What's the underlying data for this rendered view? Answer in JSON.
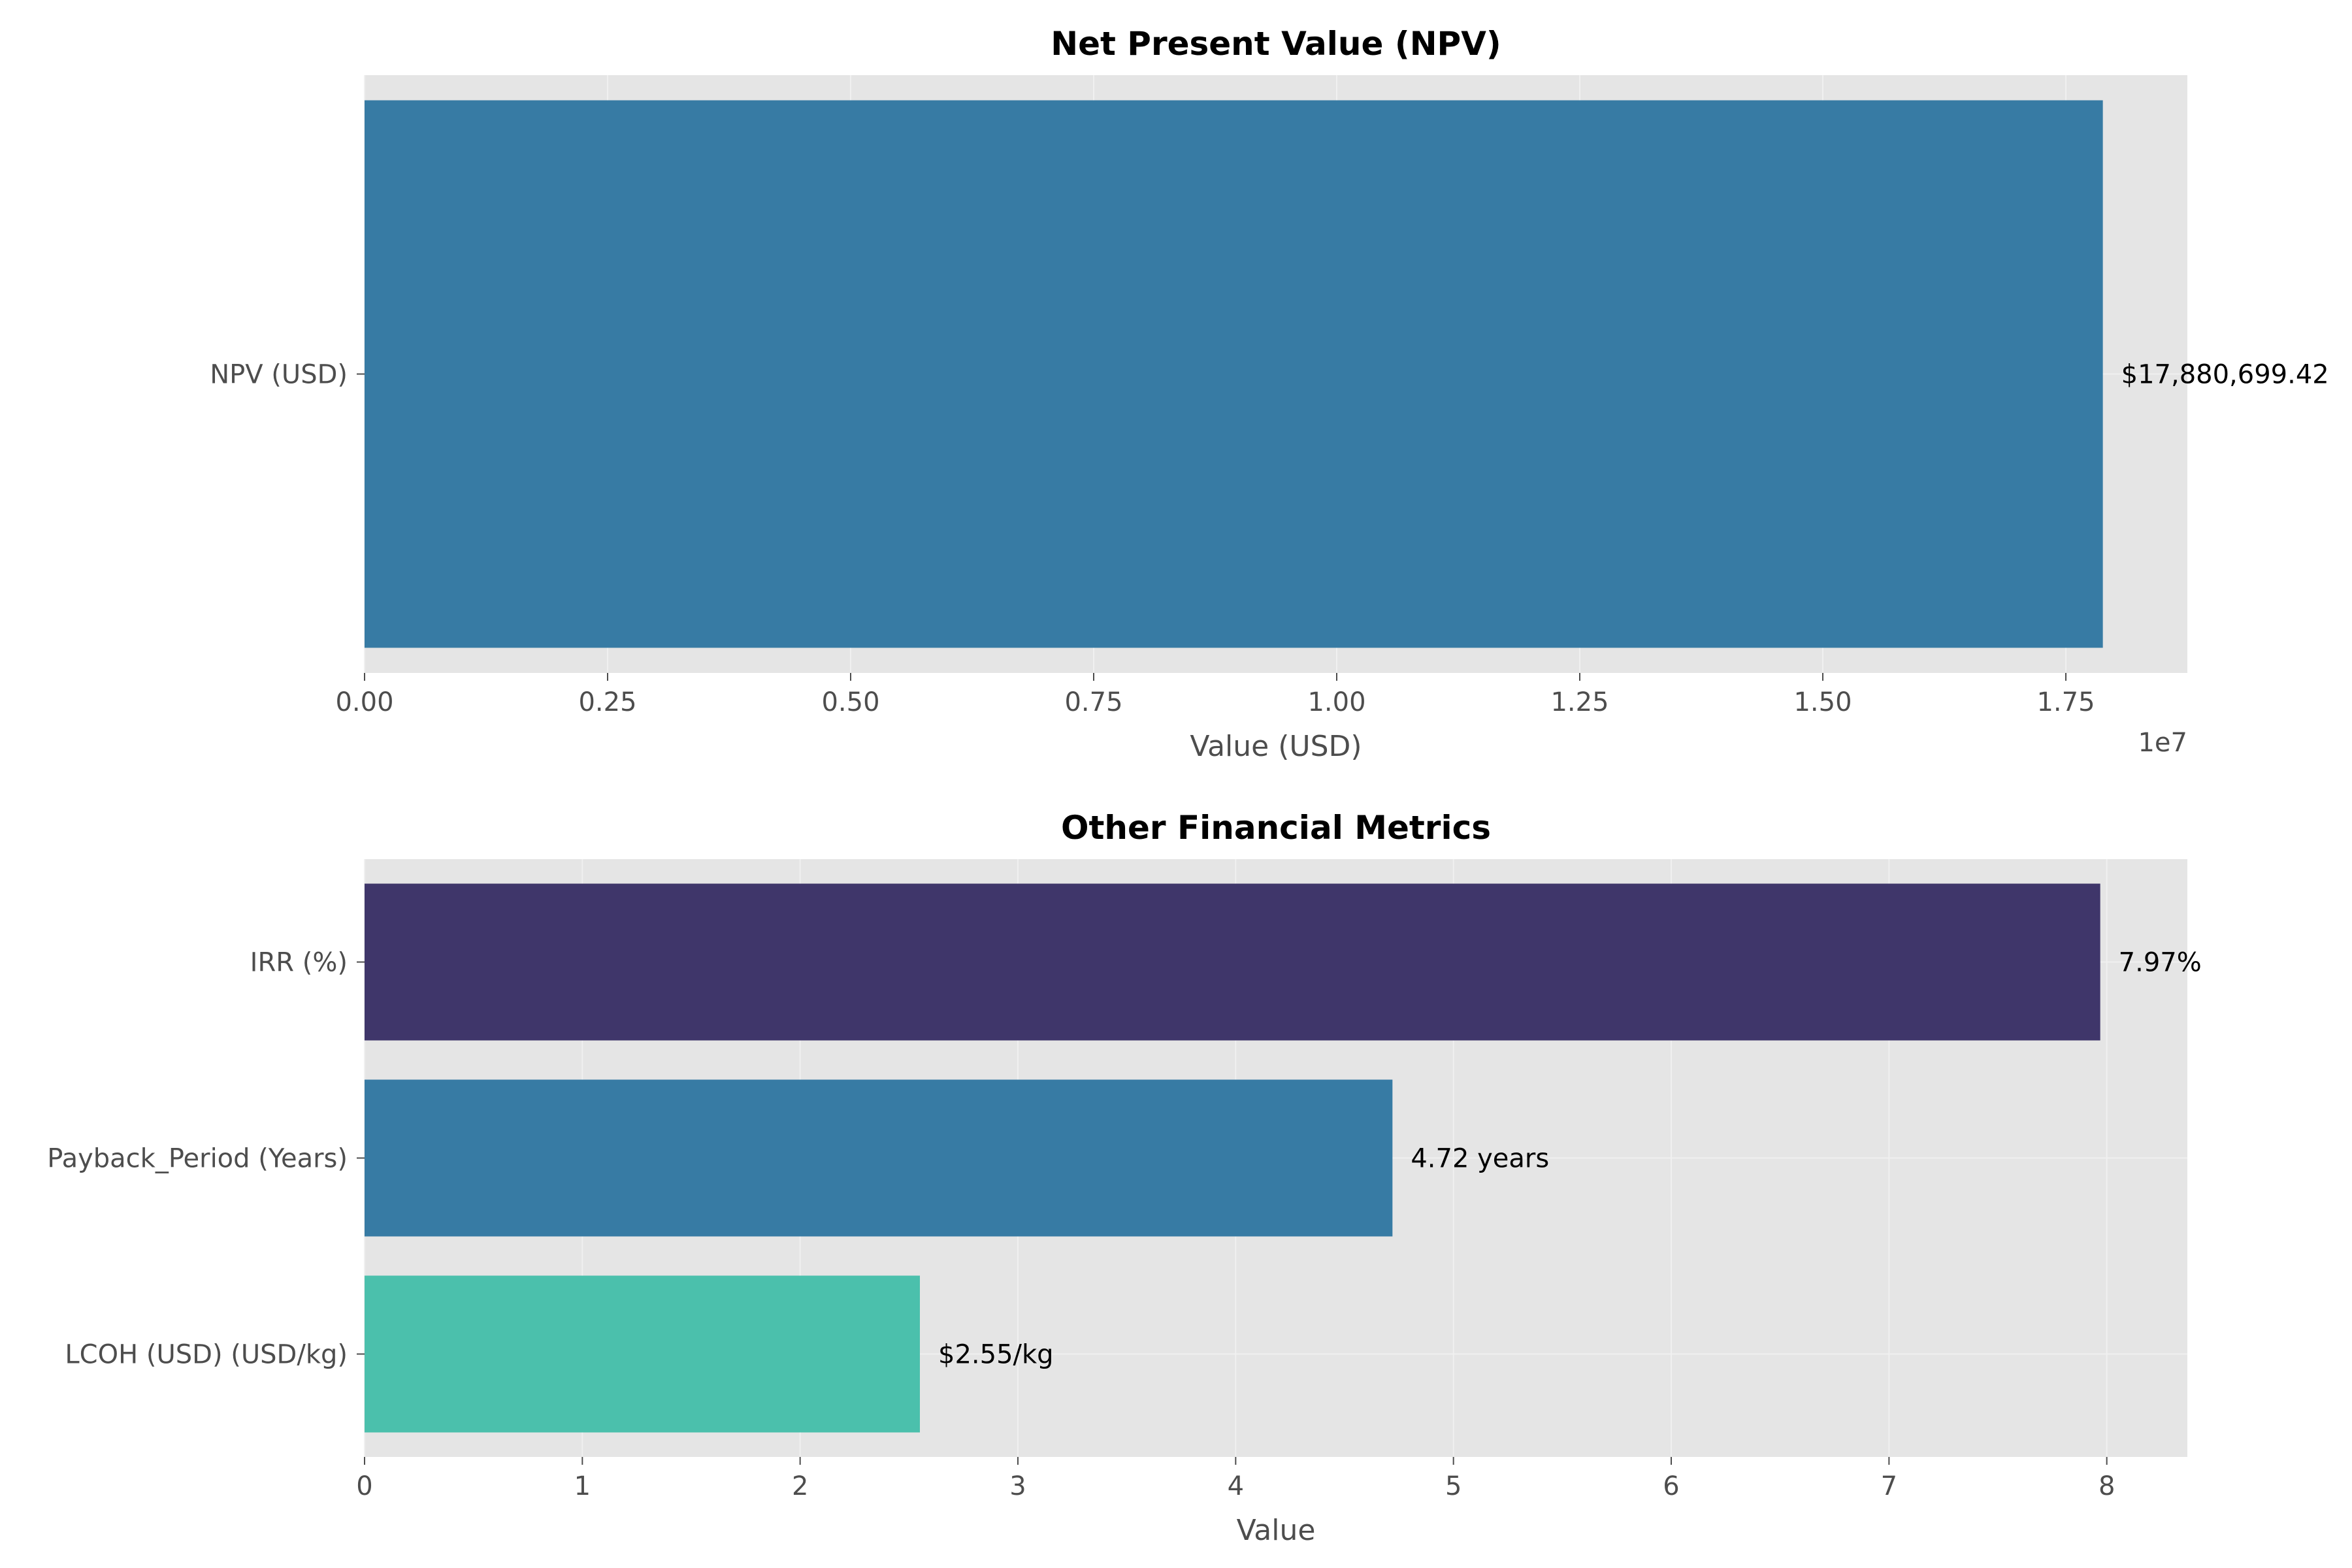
{
  "chart_data": [
    {
      "type": "bar",
      "orientation": "horizontal",
      "title": "Net Present Value (NPV)",
      "categories": [
        "NPV (USD)"
      ],
      "values": [
        17880699.42
      ],
      "value_labels": [
        "$17,880,699.42"
      ],
      "colors": [
        "#377ba4"
      ],
      "xlabel": "Value (USD)",
      "ylabel": "",
      "xlim": [
        0,
        18750000
      ],
      "xticks": [
        0,
        2500000,
        5000000,
        7500000,
        10000000,
        12500000,
        15000000,
        17500000
      ],
      "xtick_labels": [
        "0.00",
        "0.25",
        "0.50",
        "0.75",
        "1.00",
        "1.25",
        "1.50",
        "1.75"
      ],
      "offset_label": "1e7",
      "grid": true
    },
    {
      "type": "bar",
      "orientation": "horizontal",
      "title": "Other Financial Metrics",
      "categories": [
        "LCOH (USD) (USD/kg)",
        "Payback_Period (Years)",
        "IRR (%)"
      ],
      "values": [
        2.55,
        4.72,
        7.97
      ],
      "value_labels": [
        "$2.55/kg",
        "4.72 years",
        "7.97%"
      ],
      "colors": [
        "#4bc0ac",
        "#377ba4",
        "#3f366a"
      ],
      "xlabel": "Value",
      "ylabel": "",
      "xlim": [
        0,
        8.37
      ],
      "xticks": [
        0,
        1,
        2,
        3,
        4,
        5,
        6,
        7,
        8
      ],
      "xtick_labels": [
        "0",
        "1",
        "2",
        "3",
        "4",
        "5",
        "6",
        "7",
        "8"
      ],
      "grid": true
    }
  ]
}
